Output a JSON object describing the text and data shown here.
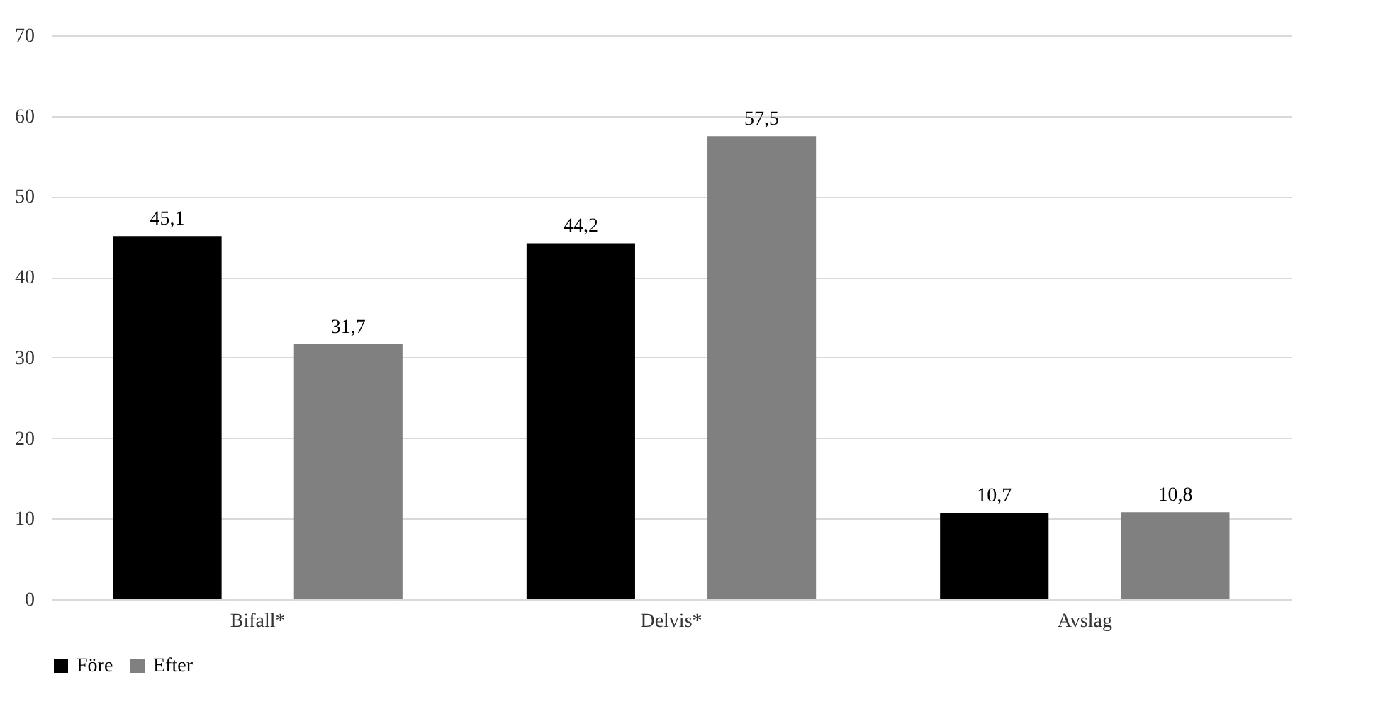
{
  "chart_data": {
    "type": "bar",
    "categories": [
      "Bifall*",
      "Delvis*",
      "Avslag"
    ],
    "series": [
      {
        "name": "Före",
        "color": "#000000",
        "values": [
          45.1,
          44.2,
          10.7
        ],
        "value_labels": [
          "45,1",
          "44,2",
          "10,7"
        ]
      },
      {
        "name": "Efter",
        "color": "#808080",
        "values": [
          31.7,
          57.5,
          10.8
        ],
        "value_labels": [
          "31,7",
          "57,5",
          "10,8"
        ]
      }
    ],
    "ylim": [
      0,
      70
    ],
    "yticks": [
      0,
      10,
      20,
      30,
      40,
      50,
      60,
      70
    ],
    "grid": "y",
    "legend": "bottom"
  }
}
